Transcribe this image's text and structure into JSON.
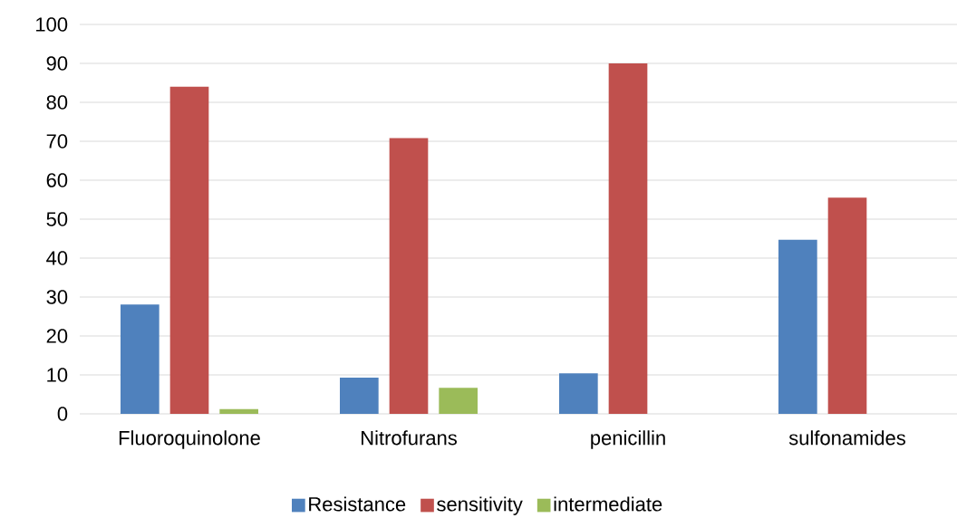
{
  "chart_data": {
    "type": "bar",
    "categories": [
      "Fluoroquinolone",
      "Nitrofurans",
      "penicillin",
      "sulfonamides"
    ],
    "series": [
      {
        "name": "Resistance",
        "color": "#4f81bd",
        "values": [
          28.1,
          9.3,
          10.4,
          44.7
        ]
      },
      {
        "name": "sensitivity",
        "color": "#c0504d",
        "values": [
          84.0,
          70.8,
          90.0,
          55.5
        ]
      },
      {
        "name": "intermediate",
        "color": "#9bbb59",
        "values": [
          1.2,
          6.7,
          null,
          null
        ]
      }
    ],
    "ylim": [
      0,
      100
    ],
    "yticks": [
      0,
      10,
      20,
      30,
      40,
      50,
      60,
      70,
      80,
      90,
      100
    ],
    "grid": "y",
    "legend": "bottom"
  }
}
